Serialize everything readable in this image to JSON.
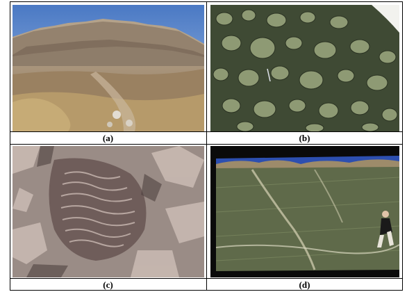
{
  "figure": {
    "panels": [
      {
        "id": "a",
        "caption": "(a)",
        "subject": "mountain-ridge-landscape"
      },
      {
        "id": "b",
        "caption": "(b)",
        "subject": "cobble-conglomerate-outcrop"
      },
      {
        "id": "c",
        "caption": "(c)",
        "subject": "rippled-rock-surface"
      },
      {
        "id": "d",
        "caption": "(d)",
        "subject": "inclined-bedding-plane-with-person"
      }
    ]
  }
}
